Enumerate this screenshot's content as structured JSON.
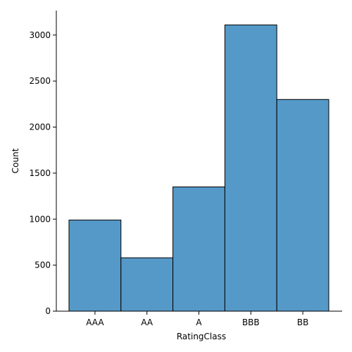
{
  "chart_data": {
    "type": "bar",
    "categories": [
      "AAA",
      "AA",
      "A",
      "BBB",
      "BB"
    ],
    "values": [
      990,
      580,
      1350,
      3110,
      2300
    ],
    "xlabel": "RatingClass",
    "ylabel": "Count",
    "ylim": [
      0,
      3266
    ],
    "yticks": [
      0,
      500,
      1000,
      1500,
      2000,
      2500,
      3000
    ],
    "grid": false,
    "colors": {
      "bar": "#5599c8",
      "edge": "#000000"
    }
  }
}
